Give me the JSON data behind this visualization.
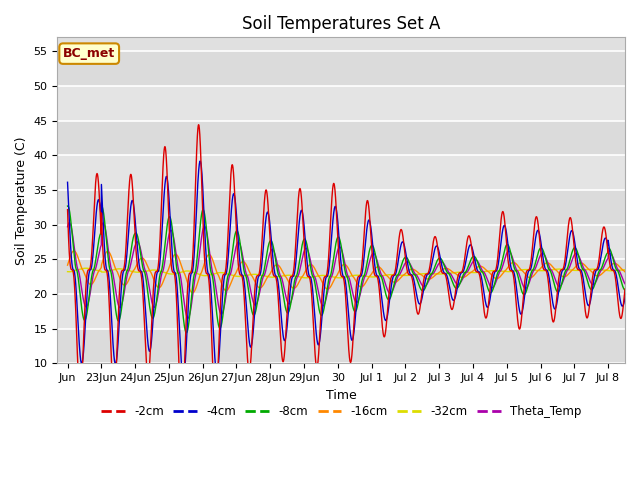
{
  "title": "Soil Temperatures Set A",
  "xlabel": "Time",
  "ylabel": "Soil Temperature (C)",
  "ylim": [
    10,
    57
  ],
  "yticks": [
    10,
    15,
    20,
    25,
    30,
    35,
    40,
    45,
    50,
    55
  ],
  "xtick_labels": [
    "Jun",
    "23Jun",
    "24Jun",
    "25Jun",
    "26Jun",
    "27Jun",
    "28Jun",
    "29Jun",
    "30",
    "Jul 1",
    "Jul 2",
    "Jul 3",
    "Jul 4",
    "Jul 5",
    "Jul 6",
    "Jul 7",
    "Jul 8"
  ],
  "annotation_text": "BC_met",
  "annotation_bg": "#ffffcc",
  "annotation_border": "#cc8800",
  "series_colors": {
    "-2cm": "#dd0000",
    "-4cm": "#0000cc",
    "-8cm": "#00aa00",
    "-16cm": "#ff8800",
    "-32cm": "#dddd00",
    "Theta_Temp": "#aa00aa"
  },
  "background_color": "#e0e0e0",
  "grid_color": "#ffffff",
  "title_fontsize": 12,
  "label_fontsize": 9,
  "tick_fontsize": 8,
  "peak_amplitudes": [
    29,
    17,
    25,
    29,
    20,
    16,
    17,
    18,
    14,
    8,
    7,
    7,
    12,
    10,
    10,
    8
  ],
  "base_mean": 23.0,
  "damping_depth": 7.0,
  "peak_hour": 14.0,
  "depths": [
    2,
    4,
    8,
    16,
    32
  ],
  "theta_depth": 10
}
